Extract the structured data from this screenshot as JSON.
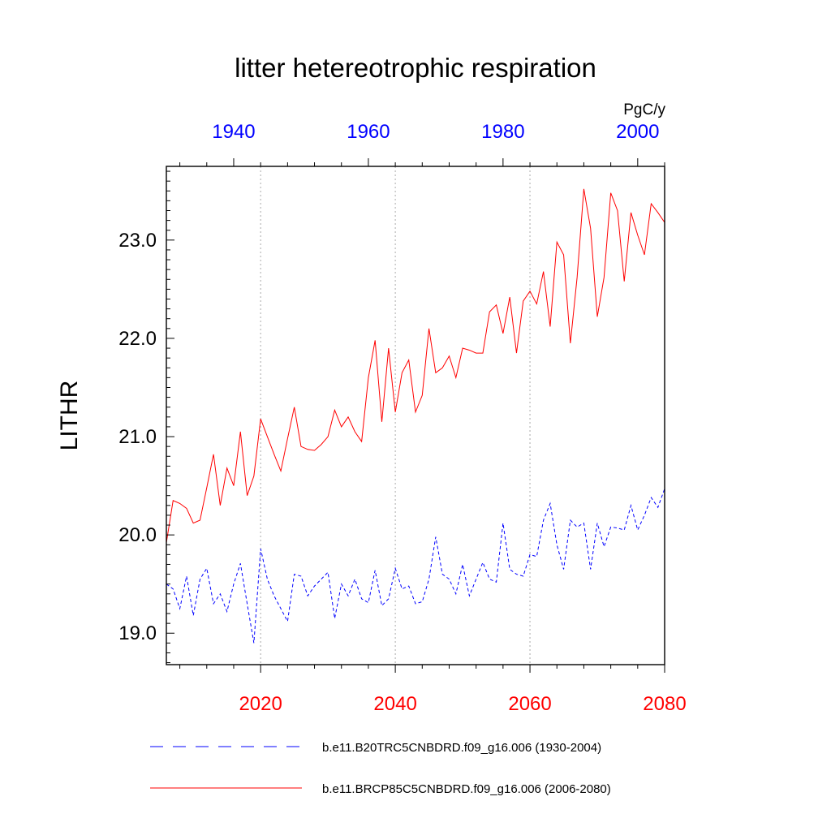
{
  "chart_data": {
    "type": "line",
    "title": "litter hetereotrophic respiration",
    "ylabel": "LITHR",
    "units": "PgC/y",
    "ylim": [
      18.68,
      23.75
    ],
    "yticks": [
      {
        "v": 19.0,
        "label": "19.0"
      },
      {
        "v": 20.0,
        "label": "20.0"
      },
      {
        "v": 21.0,
        "label": "21.0"
      },
      {
        "v": 22.0,
        "label": "22.0"
      },
      {
        "v": 23.0,
        "label": "23.0"
      }
    ],
    "bottom_axis": {
      "color": "#ff0000",
      "xlim": [
        2006,
        2080
      ],
      "ticks": [
        {
          "v": 2020,
          "label": "2020"
        },
        {
          "v": 2040,
          "label": "2040"
        },
        {
          "v": 2060,
          "label": "2060"
        },
        {
          "v": 2080,
          "label": "2080"
        }
      ]
    },
    "top_axis": {
      "color": "#0000ff",
      "xlim": [
        1930,
        2004
      ],
      "ticks": [
        {
          "v": 1940,
          "label": "1940"
        },
        {
          "v": 1960,
          "label": "1960"
        },
        {
          "v": 1980,
          "label": "1980"
        },
        {
          "v": 2000,
          "label": "2000"
        }
      ]
    },
    "grid": "vertical dotted at major bottom ticks",
    "legend_position": "bottom",
    "series": [
      {
        "name": "b.e11.B20TRC5CNBDRD.f09_g16.006 (1930-2004)",
        "axis": "top",
        "color": "#0000ff",
        "style": "dashed",
        "x_start": 1930,
        "values": [
          19.5,
          19.45,
          19.25,
          19.58,
          19.18,
          19.55,
          19.66,
          19.3,
          19.4,
          19.22,
          19.5,
          19.71,
          19.3,
          18.9,
          19.86,
          19.55,
          19.38,
          19.25,
          19.12,
          19.6,
          19.58,
          19.38,
          19.48,
          19.55,
          19.62,
          19.15,
          19.5,
          19.38,
          19.55,
          19.35,
          19.31,
          19.64,
          19.28,
          19.35,
          19.66,
          19.45,
          19.48,
          19.3,
          19.32,
          19.55,
          19.98,
          19.6,
          19.55,
          19.4,
          19.7,
          19.38,
          19.55,
          19.72,
          19.55,
          19.52,
          20.12,
          19.65,
          19.6,
          19.58,
          19.8,
          19.78,
          20.15,
          20.32,
          19.9,
          19.65,
          20.15,
          20.08,
          20.12,
          19.65,
          20.12,
          19.88,
          20.08,
          20.07,
          20.05,
          20.3,
          20.05,
          20.2,
          20.38,
          20.28,
          20.47
        ]
      },
      {
        "name": "b.e11.BRCP85C5CNBDRD.f09_g16.006 (2006-2080)",
        "axis": "bottom",
        "color": "#ff0000",
        "style": "solid",
        "x_start": 2006,
        "values": [
          19.92,
          20.35,
          20.32,
          20.27,
          20.12,
          20.15,
          20.48,
          20.82,
          20.3,
          20.68,
          20.5,
          21.05,
          20.4,
          20.6,
          21.18,
          21.0,
          20.82,
          20.65,
          20.98,
          21.3,
          20.9,
          20.87,
          20.86,
          20.92,
          21.0,
          21.27,
          21.1,
          21.2,
          21.05,
          20.95,
          21.6,
          21.98,
          21.15,
          21.9,
          21.25,
          21.65,
          21.78,
          21.25,
          21.42,
          22.1,
          21.65,
          21.7,
          21.82,
          21.6,
          21.9,
          21.88,
          21.85,
          21.85,
          22.27,
          22.34,
          22.05,
          22.42,
          21.85,
          22.38,
          22.48,
          22.35,
          22.68,
          22.12,
          22.98,
          22.85,
          21.95,
          22.62,
          23.52,
          23.12,
          22.22,
          22.62,
          23.48,
          23.3,
          22.58,
          23.28,
          23.05,
          22.85,
          23.37,
          23.28,
          23.18
        ]
      }
    ]
  }
}
